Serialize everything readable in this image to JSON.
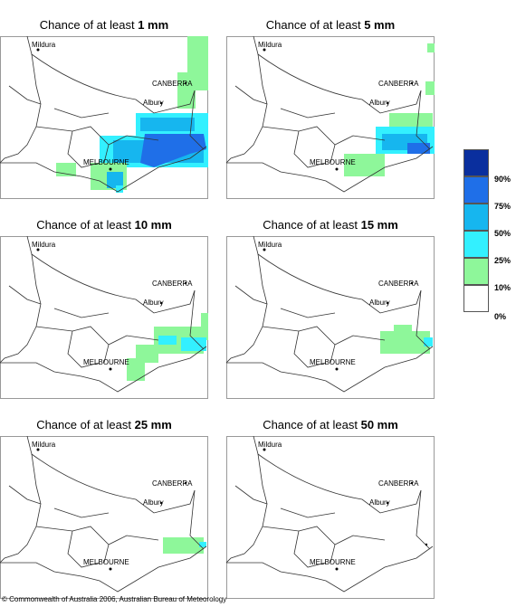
{
  "panels": [
    {
      "title_prefix": "Chance of at least",
      "amount": "1 mm"
    },
    {
      "title_prefix": "Chance of at least",
      "amount": "5 mm"
    },
    {
      "title_prefix": "Chance of at least",
      "amount": "10 mm"
    },
    {
      "title_prefix": "Chance of at least",
      "amount": "15 mm"
    },
    {
      "title_prefix": "Chance of at least",
      "amount": "25 mm"
    },
    {
      "title_prefix": "Chance of at least",
      "amount": "50 mm"
    }
  ],
  "places": {
    "mildura": "Mildura",
    "canberra": "CANBERRA",
    "albury": "Albury",
    "melbourne": "MELBOURNE"
  },
  "legend": {
    "labels": [
      "90%",
      "75%",
      "50%",
      "25%",
      "10%",
      "0%"
    ],
    "colors": [
      "#0a2f9e",
      "#1f6fe8",
      "#16b6ef",
      "#33f0ff",
      "#8ef79a",
      "#ffffff"
    ]
  },
  "copyright": "© Commonwealth of Australia 2006, Australian Bureau of Meteorology"
}
